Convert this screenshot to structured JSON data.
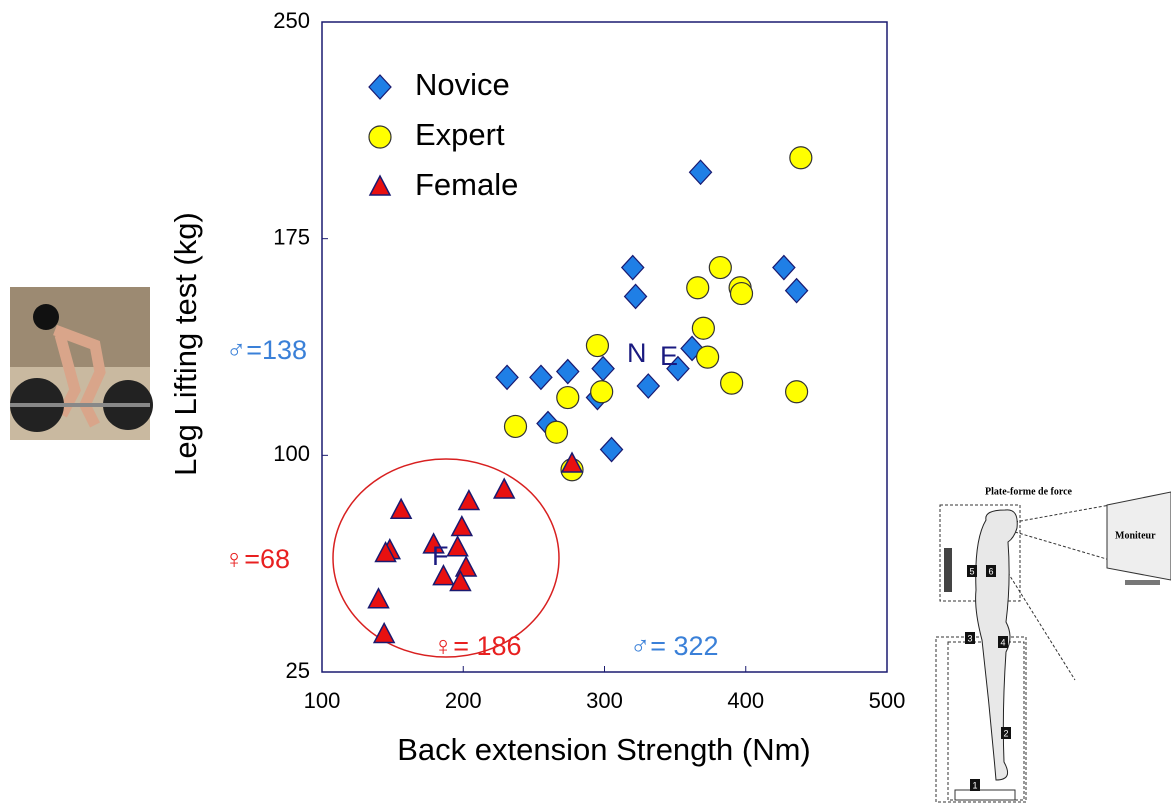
{
  "chart_data": {
    "type": "scatter",
    "x_label": "Back extension Strength (Nm)",
    "y_label": "Leg Lifting test (kg)",
    "xlim": [
      100,
      500
    ],
    "xticks": [
      100,
      200,
      300,
      400,
      500
    ],
    "ylim": [
      25,
      250
    ],
    "yticks": [
      25,
      100,
      175,
      250
    ],
    "series": [
      {
        "name": "Novice",
        "color": "#1f7fe6",
        "marker": "diamond",
        "x": [
          368,
          320,
          322,
          427,
          436,
          362,
          231,
          255,
          274,
          299,
          331,
          352,
          295,
          260,
          305
        ],
        "values": [
          198,
          165,
          155,
          165,
          157,
          137,
          127,
          127,
          129,
          130,
          124,
          130,
          120,
          111,
          102
        ]
      },
      {
        "name": "Expert",
        "color": "#ffff00",
        "marker": "circle",
        "x": [
          439,
          382,
          366,
          396,
          397,
          370,
          295,
          373,
          390,
          436,
          298,
          274,
          237,
          266,
          277
        ],
        "values": [
          203,
          165,
          158,
          158,
          156,
          144,
          138,
          134,
          125,
          122,
          122,
          120,
          110,
          108,
          95
        ]
      },
      {
        "name": "Female",
        "color": "#e81010",
        "marker": "triangle",
        "x": [
          229,
          204,
          156,
          199,
          148,
          145,
          179,
          196,
          202,
          186,
          198,
          140,
          144,
          277
        ],
        "values": [
          88,
          84,
          81,
          75,
          67,
          66,
          69,
          68,
          61,
          58,
          56,
          50,
          38,
          97
        ]
      }
    ],
    "annotations": [
      {
        "text": "♂=138",
        "color": "#3a80d8"
      },
      {
        "text": "♀=68",
        "color": "#e82020"
      },
      {
        "text": "♀= 186",
        "color": "#e82020"
      },
      {
        "text": "♂= 322",
        "color": "#3a80d8"
      },
      {
        "text": "N",
        "color": "#1a1a80"
      },
      {
        "text": "E",
        "color": "#1a1a80"
      },
      {
        "text": "F",
        "color": "#1a1a80"
      }
    ]
  },
  "diagram": {
    "title": "Plate-forme de force",
    "monitor": "Moniteur",
    "numbers": [
      "1",
      "2",
      "3",
      "4",
      "5",
      "6"
    ]
  }
}
